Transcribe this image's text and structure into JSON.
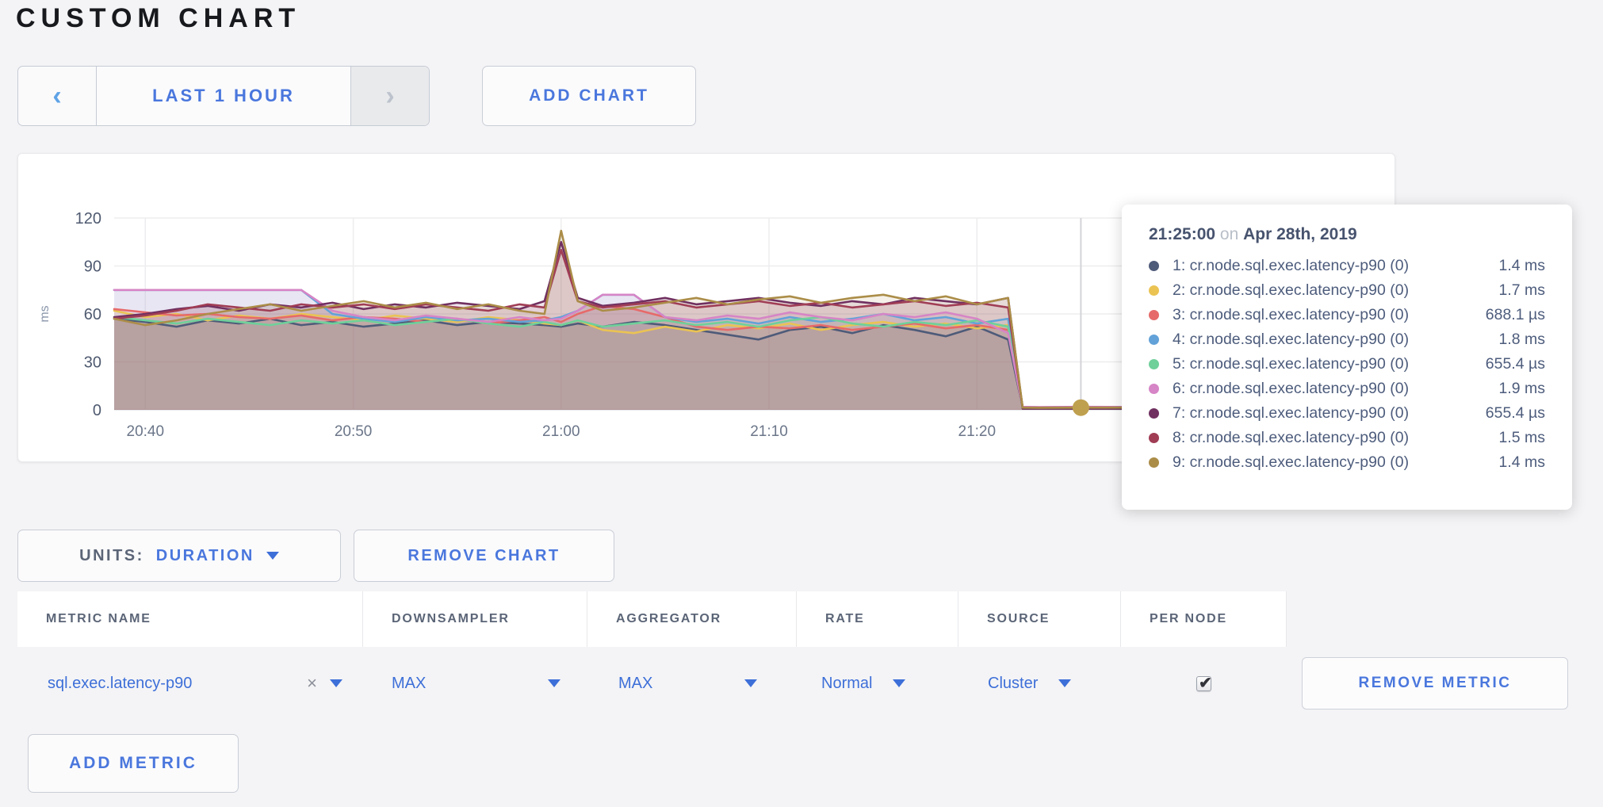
{
  "page": {
    "title": "CUSTOM CHART"
  },
  "colors": {
    "accent_blue": "#4a77dd",
    "row_blue": "#3d6fd8",
    "hover_dot": "#bfa04f"
  },
  "toolbar": {
    "time_range": {
      "prev_icon": "‹",
      "label": "LAST 1 HOUR",
      "next_icon": "›"
    },
    "add_chart_label": "ADD CHART"
  },
  "chart_data": {
    "type": "area",
    "title": "",
    "ylabel": "ms",
    "ylim": [
      0,
      120
    ],
    "grid": true,
    "y_ticks": [
      0,
      30,
      60,
      90,
      120
    ],
    "x_ticks": [
      {
        "t": 5,
        "label": "20:40"
      },
      {
        "t": 15,
        "label": "20:50"
      },
      {
        "t": 25,
        "label": "21:00"
      },
      {
        "t": 35,
        "label": "21:10"
      },
      {
        "t": 45,
        "label": "21:20"
      }
    ],
    "t_minutes": [
      3.5,
      5,
      6.5,
      8,
      9.5,
      11,
      12.5,
      14,
      15.5,
      17,
      18.5,
      20,
      21.5,
      23,
      24.2,
      25,
      25.8,
      27,
      28.5,
      30,
      31.5,
      33,
      34.5,
      36,
      37.5,
      39,
      40.5,
      42,
      43.5,
      45,
      46.5,
      47.2,
      48,
      50,
      52,
      56,
      64
    ],
    "crosshair_t": 50,
    "hover_point": {
      "t": 50,
      "value": 1.4,
      "color": "#bfa04f"
    },
    "series": [
      {
        "name": "1: cr.node.sql.exec.latency-p90 (0)",
        "color": "#4e5b79",
        "values": [
          57,
          55,
          52,
          56,
          54,
          57,
          53,
          55,
          52,
          54,
          56,
          53,
          55,
          54,
          53,
          52,
          54,
          52,
          55,
          53,
          50,
          47,
          44,
          50,
          52,
          48,
          53,
          50,
          46,
          52,
          44,
          1.4,
          1.2,
          1.4,
          1.3,
          1.4,
          1.4
        ]
      },
      {
        "name": "2: cr.node.sql.exec.latency-p90 (0)",
        "color": "#eac353",
        "values": [
          62,
          58,
          60,
          56,
          59,
          57,
          60,
          58,
          56,
          59,
          57,
          55,
          58,
          56,
          54,
          53,
          56,
          50,
          48,
          52,
          49,
          53,
          51,
          54,
          50,
          53,
          55,
          52,
          54,
          51,
          53,
          1.7,
          1.5,
          1.7,
          1.6,
          1.7,
          1.7
        ]
      },
      {
        "name": "3: cr.node.sql.exec.latency-p90 (0)",
        "color": "#e66a6a",
        "values": [
          63,
          61,
          59,
          60,
          58,
          57,
          59,
          56,
          58,
          57,
          55,
          57,
          54,
          56,
          58,
          55,
          60,
          65,
          63,
          58,
          52,
          50,
          52,
          51,
          53,
          50,
          52,
          54,
          51,
          53,
          50,
          0.7,
          0.7,
          0.7,
          0.7,
          0.7,
          0.7
        ]
      },
      {
        "name": "4: cr.node.sql.exec.latency-p90 (0)",
        "color": "#62a2d8",
        "values": [
          75,
          75,
          75,
          75,
          75,
          75,
          75,
          60,
          57,
          55,
          58,
          56,
          57,
          55,
          56,
          58,
          62,
          72,
          72,
          58,
          55,
          57,
          54,
          58,
          55,
          57,
          60,
          56,
          58,
          54,
          57,
          1.8,
          1.6,
          1.8,
          1.7,
          1.8,
          1.8
        ]
      },
      {
        "name": "5: cr.node.sql.exec.latency-p90 (0)",
        "color": "#6fd09a",
        "values": [
          58,
          56,
          54,
          57,
          55,
          53,
          56,
          54,
          56,
          53,
          55,
          57,
          54,
          52,
          55,
          53,
          56,
          52,
          54,
          56,
          53,
          55,
          52,
          56,
          58,
          54,
          52,
          55,
          53,
          56,
          52,
          0.7,
          0.7,
          0.7,
          0.7,
          0.7,
          0.7
        ]
      },
      {
        "name": "6: cr.node.sql.exec.latency-p90 (0)",
        "color": "#d685c6",
        "values": [
          75,
          75,
          75,
          75,
          75,
          75,
          75,
          62,
          58,
          56,
          59,
          57,
          55,
          58,
          56,
          57,
          62,
          72,
          72,
          58,
          56,
          59,
          57,
          61,
          58,
          56,
          60,
          58,
          61,
          57,
          48,
          1.9,
          1.7,
          1.9,
          1.8,
          1.9,
          1.9
        ]
      },
      {
        "name": "7: cr.node.sql.exec.latency-p90 (0)",
        "color": "#703060",
        "values": [
          58,
          60,
          63,
          65,
          62,
          66,
          64,
          67,
          63,
          66,
          64,
          67,
          65,
          63,
          68,
          105,
          70,
          65,
          67,
          70,
          66,
          68,
          70,
          67,
          65,
          68,
          66,
          70,
          68,
          66,
          70,
          0.7,
          0.7,
          0.7,
          0.7,
          0.7,
          0.7
        ]
      },
      {
        "name": "8: cr.node.sql.exec.latency-p90 (0)",
        "color": "#a03d55",
        "values": [
          57,
          59,
          62,
          66,
          64,
          62,
          66,
          64,
          66,
          63,
          66,
          64,
          62,
          66,
          64,
          100,
          68,
          64,
          66,
          68,
          64,
          66,
          68,
          65,
          67,
          64,
          66,
          68,
          65,
          67,
          64,
          1.5,
          1.4,
          1.5,
          1.5,
          1.5,
          1.5
        ]
      },
      {
        "name": "9: cr.node.sql.exec.latency-p90 (0)",
        "color": "#ab8d48",
        "values": [
          57,
          53,
          56,
          60,
          63,
          66,
          62,
          65,
          68,
          64,
          67,
          63,
          66,
          62,
          60,
          112,
          68,
          62,
          64,
          67,
          70,
          66,
          69,
          71,
          67,
          70,
          72,
          68,
          71,
          66,
          70,
          1.4,
          1.3,
          1.4,
          1.4,
          1.4,
          1.4
        ]
      }
    ]
  },
  "tooltip": {
    "time": "21:25:00",
    "separator": "on",
    "date": "Apr 28th, 2019",
    "rows": [
      {
        "color": "#4e5b79",
        "label": "1: cr.node.sql.exec.latency-p90 (0)",
        "value": "1.4 ms"
      },
      {
        "color": "#eac353",
        "label": "2: cr.node.sql.exec.latency-p90 (0)",
        "value": "1.7 ms"
      },
      {
        "color": "#e66a6a",
        "label": "3: cr.node.sql.exec.latency-p90 (0)",
        "value": "688.1 µs"
      },
      {
        "color": "#62a2d8",
        "label": "4: cr.node.sql.exec.latency-p90 (0)",
        "value": "1.8 ms"
      },
      {
        "color": "#6fd09a",
        "label": "5: cr.node.sql.exec.latency-p90 (0)",
        "value": "655.4 µs"
      },
      {
        "color": "#d685c6",
        "label": "6: cr.node.sql.exec.latency-p90 (0)",
        "value": "1.9 ms"
      },
      {
        "color": "#703060",
        "label": "7: cr.node.sql.exec.latency-p90 (0)",
        "value": "655.4 µs"
      },
      {
        "color": "#a03d55",
        "label": "8: cr.node.sql.exec.latency-p90 (0)",
        "value": "1.5 ms"
      },
      {
        "color": "#ab8d48",
        "label": "9: cr.node.sql.exec.latency-p90 (0)",
        "value": "1.4 ms"
      }
    ]
  },
  "chart_controls": {
    "units_label": "UNITS:",
    "units_value": "DURATION",
    "remove_chart_label": "REMOVE CHART"
  },
  "metrics_table": {
    "headers": [
      "METRIC NAME",
      "DOWNSAMPLER",
      "AGGREGATOR",
      "RATE",
      "SOURCE",
      "PER NODE"
    ],
    "rows": [
      {
        "metric_name": "sql.exec.latency-p90",
        "clear_icon": "×",
        "downsampler": "MAX",
        "aggregator": "MAX",
        "rate": "Normal",
        "source": "Cluster",
        "per_node_checked": true,
        "check_icon": "✔",
        "remove_label": "REMOVE METRIC"
      }
    ],
    "add_metric_label": "ADD METRIC"
  }
}
